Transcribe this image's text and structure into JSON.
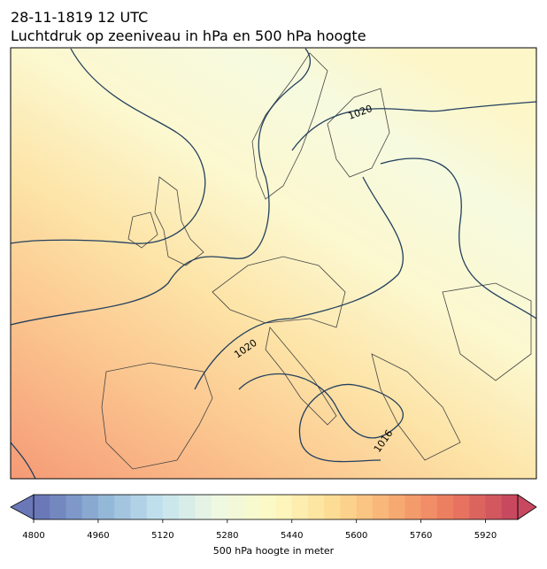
{
  "title": "28-11-1819 12 UTC",
  "subtitle": "Luchtdruk op zeeniveau in hPa en 500 hPa hoogte",
  "map": {
    "contour_labels": [
      "1020",
      "1020",
      "1016"
    ]
  },
  "colorbar": {
    "label": "500 hPa hoogte in meter",
    "lim": [
      4800,
      6000
    ],
    "ticks": [
      4800,
      4960,
      5120,
      5280,
      5440,
      5600,
      5760,
      5920
    ],
    "band_step": 40,
    "colors": [
      "#6a78b8",
      "#8fb3d6",
      "#c3e2ee",
      "#eef8e2",
      "#fdf9c2",
      "#fddc93",
      "#f8ad73",
      "#ec7a5f",
      "#c8495f"
    ]
  }
}
